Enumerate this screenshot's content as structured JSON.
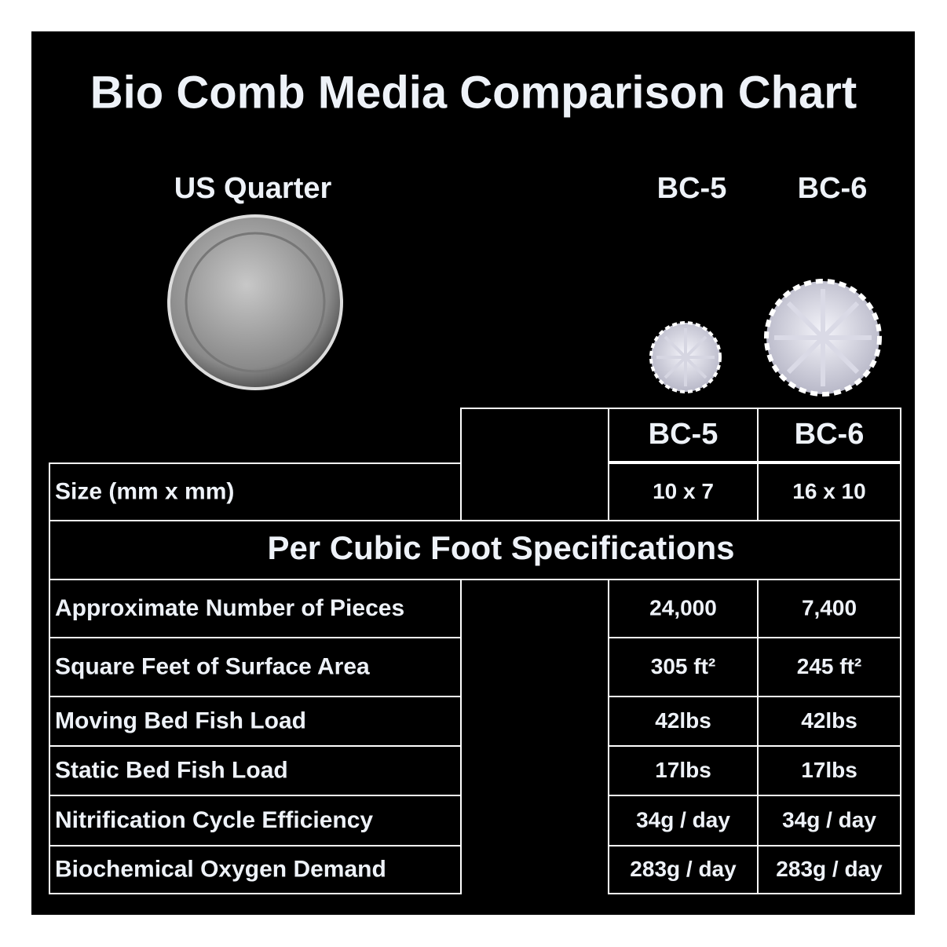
{
  "title": "Bio Comb Media Comparison Chart",
  "images": [
    {
      "label": "US Quarter"
    },
    {
      "label": "BC-5"
    },
    {
      "label": "BC-6"
    }
  ],
  "table": {
    "header": [
      "BC-5",
      "BC-6"
    ],
    "size_row": [
      "Size (mm x mm)",
      "10 x 7",
      "16 x 10"
    ],
    "section": "Per Cubic Foot Specifications",
    "rows": [
      [
        "Approximate Number of Pieces",
        "24,000",
        "7,400"
      ],
      [
        "Square Feet of Surface Area",
        "305 ft²",
        "245 ft²"
      ],
      [
        "Moving Bed Fish Load",
        "42lbs",
        "42lbs"
      ],
      [
        "Static Bed Fish Load",
        "17lbs",
        "17lbs"
      ],
      [
        "Nitrification Cycle Efficiency",
        "34g / day",
        "34g / day"
      ],
      [
        "Biochemical Oxygen Demand",
        "283g / day",
        "283g / day"
      ]
    ]
  }
}
